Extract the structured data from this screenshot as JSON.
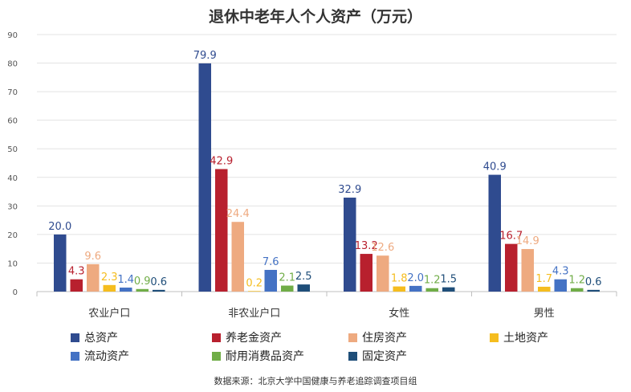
{
  "title": "退休中老年人个人资产（万元）",
  "source": "数据来源：北京大学中国健康与养老追踪调查项目组",
  "chart_data": {
    "type": "bar",
    "title": "退休中老年人个人资产（万元）",
    "xlabel": "",
    "ylabel": "",
    "ylim": [
      0,
      90
    ],
    "yticks": [
      0,
      10,
      20,
      30,
      40,
      50,
      60,
      70,
      80,
      90
    ],
    "grid": true,
    "legend_position": "bottom",
    "categories": [
      "农业户口",
      "非农业户口",
      "女性",
      "男性"
    ],
    "series": [
      {
        "name": "总资产",
        "color": "#2f4b8f",
        "values": [
          20.0,
          79.9,
          32.9,
          40.9
        ]
      },
      {
        "name": "养老金资产",
        "color": "#b8202e",
        "values": [
          4.3,
          42.9,
          13.2,
          16.7
        ]
      },
      {
        "name": "住房资产",
        "color": "#eeaa80",
        "values": [
          9.6,
          24.4,
          12.6,
          14.9
        ]
      },
      {
        "name": "土地资产",
        "color": "#f5bd1f",
        "values": [
          2.3,
          0.2,
          1.8,
          1.7
        ]
      },
      {
        "name": "流动资产",
        "color": "#4472c4",
        "values": [
          1.4,
          7.6,
          2.0,
          4.3
        ]
      },
      {
        "name": "耐用消费品资产",
        "color": "#70ad47",
        "values": [
          0.9,
          2.1,
          1.2,
          1.2
        ]
      },
      {
        "name": "固定资产",
        "color": "#1f4e79",
        "values": [
          0.6,
          2.5,
          1.5,
          0.6
        ]
      }
    ]
  }
}
